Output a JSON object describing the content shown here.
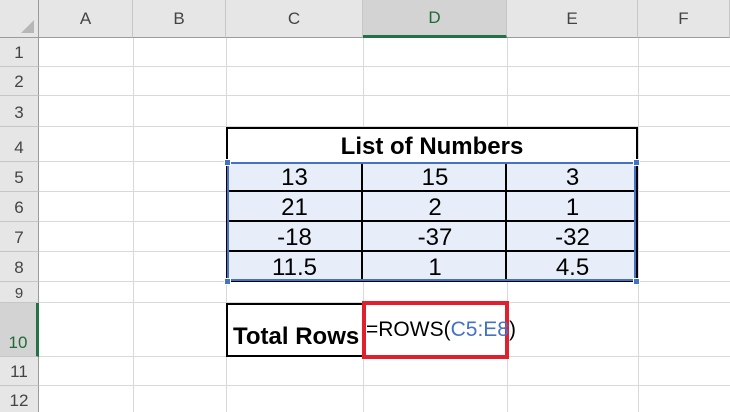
{
  "columns": [
    "A",
    "B",
    "C",
    "D",
    "E",
    "F"
  ],
  "selected_column": "D",
  "rows": [
    "1",
    "2",
    "3",
    "4",
    "5",
    "6",
    "7",
    "8",
    "9",
    "10",
    "11",
    "12"
  ],
  "selected_row": "10",
  "table": {
    "title": "List of Numbers",
    "values": [
      [
        "13",
        "15",
        "3"
      ],
      [
        "21",
        "2",
        "1"
      ],
      [
        "-18",
        "-37",
        "-32"
      ],
      [
        "11.5",
        "1",
        "4.5"
      ]
    ]
  },
  "total": {
    "label": "Total Rows",
    "formula_prefix": "=ROWS(",
    "formula_ref": "C5:E8",
    "formula_suffix": ")"
  },
  "colors": {
    "selection_green": "#217346",
    "range_highlight": "#4472c4",
    "range_fill": "#e8eef9",
    "emphasis_box": "#e0202c"
  }
}
